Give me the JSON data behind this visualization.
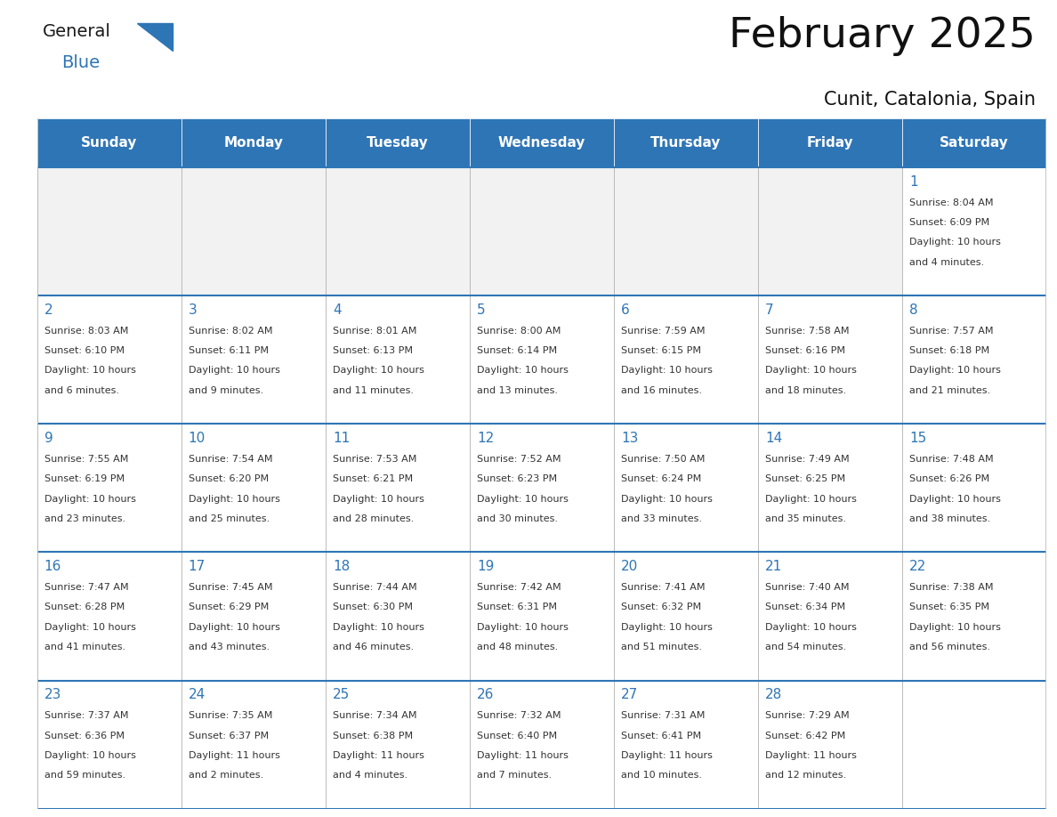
{
  "title": "February 2025",
  "subtitle": "Cunit, Catalonia, Spain",
  "header_bg": "#2E75B6",
  "header_text_color": "#FFFFFF",
  "day_names": [
    "Sunday",
    "Monday",
    "Tuesday",
    "Wednesday",
    "Thursday",
    "Friday",
    "Saturday"
  ],
  "cell_bg": "#FFFFFF",
  "cell_bg_empty_row1": "#F2F2F2",
  "cell_border": "#BBBBBB",
  "date_color": "#2E75B6",
  "info_color": "#333333",
  "background_color": "#FFFFFF",
  "logo_general_color": "#1a1a1a",
  "logo_blue_color": "#2E75B6",
  "calendar_data": [
    [
      null,
      null,
      null,
      null,
      null,
      null,
      {
        "day": 1,
        "sunrise": "8:04 AM",
        "sunset": "6:09 PM",
        "daylight": "10 hours",
        "daylight2": "and 4 minutes."
      }
    ],
    [
      {
        "day": 2,
        "sunrise": "8:03 AM",
        "sunset": "6:10 PM",
        "daylight": "10 hours",
        "daylight2": "and 6 minutes."
      },
      {
        "day": 3,
        "sunrise": "8:02 AM",
        "sunset": "6:11 PM",
        "daylight": "10 hours",
        "daylight2": "and 9 minutes."
      },
      {
        "day": 4,
        "sunrise": "8:01 AM",
        "sunset": "6:13 PM",
        "daylight": "10 hours",
        "daylight2": "and 11 minutes."
      },
      {
        "day": 5,
        "sunrise": "8:00 AM",
        "sunset": "6:14 PM",
        "daylight": "10 hours",
        "daylight2": "and 13 minutes."
      },
      {
        "day": 6,
        "sunrise": "7:59 AM",
        "sunset": "6:15 PM",
        "daylight": "10 hours",
        "daylight2": "and 16 minutes."
      },
      {
        "day": 7,
        "sunrise": "7:58 AM",
        "sunset": "6:16 PM",
        "daylight": "10 hours",
        "daylight2": "and 18 minutes."
      },
      {
        "day": 8,
        "sunrise": "7:57 AM",
        "sunset": "6:18 PM",
        "daylight": "10 hours",
        "daylight2": "and 21 minutes."
      }
    ],
    [
      {
        "day": 9,
        "sunrise": "7:55 AM",
        "sunset": "6:19 PM",
        "daylight": "10 hours",
        "daylight2": "and 23 minutes."
      },
      {
        "day": 10,
        "sunrise": "7:54 AM",
        "sunset": "6:20 PM",
        "daylight": "10 hours",
        "daylight2": "and 25 minutes."
      },
      {
        "day": 11,
        "sunrise": "7:53 AM",
        "sunset": "6:21 PM",
        "daylight": "10 hours",
        "daylight2": "and 28 minutes."
      },
      {
        "day": 12,
        "sunrise": "7:52 AM",
        "sunset": "6:23 PM",
        "daylight": "10 hours",
        "daylight2": "and 30 minutes."
      },
      {
        "day": 13,
        "sunrise": "7:50 AM",
        "sunset": "6:24 PM",
        "daylight": "10 hours",
        "daylight2": "and 33 minutes."
      },
      {
        "day": 14,
        "sunrise": "7:49 AM",
        "sunset": "6:25 PM",
        "daylight": "10 hours",
        "daylight2": "and 35 minutes."
      },
      {
        "day": 15,
        "sunrise": "7:48 AM",
        "sunset": "6:26 PM",
        "daylight": "10 hours",
        "daylight2": "and 38 minutes."
      }
    ],
    [
      {
        "day": 16,
        "sunrise": "7:47 AM",
        "sunset": "6:28 PM",
        "daylight": "10 hours",
        "daylight2": "and 41 minutes."
      },
      {
        "day": 17,
        "sunrise": "7:45 AM",
        "sunset": "6:29 PM",
        "daylight": "10 hours",
        "daylight2": "and 43 minutes."
      },
      {
        "day": 18,
        "sunrise": "7:44 AM",
        "sunset": "6:30 PM",
        "daylight": "10 hours",
        "daylight2": "and 46 minutes."
      },
      {
        "day": 19,
        "sunrise": "7:42 AM",
        "sunset": "6:31 PM",
        "daylight": "10 hours",
        "daylight2": "and 48 minutes."
      },
      {
        "day": 20,
        "sunrise": "7:41 AM",
        "sunset": "6:32 PM",
        "daylight": "10 hours",
        "daylight2": "and 51 minutes."
      },
      {
        "day": 21,
        "sunrise": "7:40 AM",
        "sunset": "6:34 PM",
        "daylight": "10 hours",
        "daylight2": "and 54 minutes."
      },
      {
        "day": 22,
        "sunrise": "7:38 AM",
        "sunset": "6:35 PM",
        "daylight": "10 hours",
        "daylight2": "and 56 minutes."
      }
    ],
    [
      {
        "day": 23,
        "sunrise": "7:37 AM",
        "sunset": "6:36 PM",
        "daylight": "10 hours",
        "daylight2": "and 59 minutes."
      },
      {
        "day": 24,
        "sunrise": "7:35 AM",
        "sunset": "6:37 PM",
        "daylight": "11 hours",
        "daylight2": "and 2 minutes."
      },
      {
        "day": 25,
        "sunrise": "7:34 AM",
        "sunset": "6:38 PM",
        "daylight": "11 hours",
        "daylight2": "and 4 minutes."
      },
      {
        "day": 26,
        "sunrise": "7:32 AM",
        "sunset": "6:40 PM",
        "daylight": "11 hours",
        "daylight2": "and 7 minutes."
      },
      {
        "day": 27,
        "sunrise": "7:31 AM",
        "sunset": "6:41 PM",
        "daylight": "11 hours",
        "daylight2": "and 10 minutes."
      },
      {
        "day": 28,
        "sunrise": "7:29 AM",
        "sunset": "6:42 PM",
        "daylight": "11 hours",
        "daylight2": "and 12 minutes."
      },
      null
    ]
  ]
}
